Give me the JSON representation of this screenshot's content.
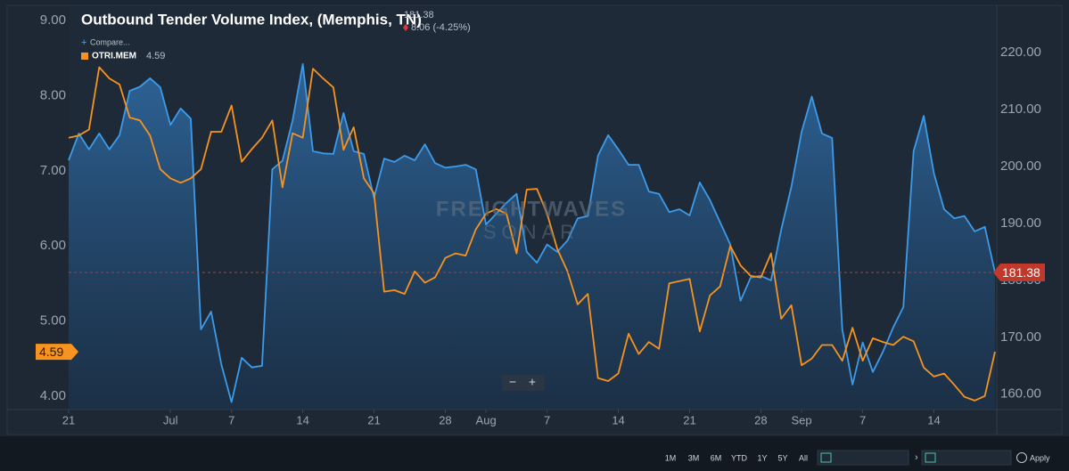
{
  "chart_data": {
    "type": "line",
    "title": "Outbound Tender Volume Index, (Memphis, TN)",
    "last_price": 181.38,
    "change": "8.06 (-4.25%)",
    "compare": "Compare...",
    "watermark": [
      "FREIGHTWAVES",
      "SONAR"
    ],
    "categories": [
      "21",
      null,
      null,
      null,
      null,
      null,
      null,
      null,
      null,
      null,
      "Jul",
      null,
      null,
      null,
      null,
      null,
      "7",
      null,
      null,
      null,
      null,
      null,
      null,
      "14",
      null,
      null,
      null,
      null,
      null,
      null,
      "21",
      null,
      null,
      null,
      null,
      null,
      null,
      "28",
      null,
      null,
      null,
      "Aug",
      null,
      null,
      null,
      null,
      null,
      "7",
      null,
      null,
      null,
      null,
      null,
      null,
      "14",
      null,
      null,
      null,
      null,
      null,
      null,
      "21",
      null,
      null,
      null,
      null,
      null,
      null,
      "28",
      null,
      null,
      null,
      "Sep",
      null,
      null,
      null,
      null,
      null,
      "7",
      null,
      null,
      null,
      null,
      null,
      null,
      "14",
      null,
      null,
      null,
      null,
      null,
      null
    ],
    "series": [
      {
        "name": "OTRI.MEM",
        "color": "#f7931e",
        "axis": "y",
        "values": [
          7.44,
          7.47,
          7.55,
          8.38,
          8.23,
          8.15,
          7.71,
          7.67,
          7.47,
          7.02,
          6.9,
          6.84,
          6.9,
          7.02,
          7.52,
          7.52,
          7.87,
          7.12,
          7.29,
          7.44,
          7.67,
          6.78,
          7.5,
          7.44,
          8.36,
          8.23,
          8.11,
          7.28,
          7.58,
          6.9,
          6.7,
          5.39,
          5.41,
          5.36,
          5.66,
          5.51,
          5.58,
          5.84,
          5.9,
          5.87,
          6.22,
          6.43,
          6.49,
          6.43,
          5.9,
          6.75,
          6.76,
          6.43,
          5.96,
          5.66,
          5.22,
          5.36,
          4.24,
          4.2,
          4.3,
          4.83,
          4.56,
          4.72,
          4.63,
          5.5,
          5.53,
          5.56,
          4.86,
          5.34,
          5.46,
          6.0,
          5.74,
          5.6,
          5.58,
          5.9,
          5.03,
          5.21,
          4.41,
          4.5,
          4.68,
          4.68,
          4.47,
          4.91,
          4.47,
          4.77,
          4.72,
          4.68,
          4.79,
          4.73,
          4.38,
          4.26,
          4.3,
          4.15,
          3.99,
          3.94,
          4.0,
          4.59
        ]
      },
      {
        "color": "#3d9be9",
        "axis": "y2",
        "values": [
          201.1,
          205.8,
          203,
          205.8,
          203,
          205.5,
          213.3,
          214,
          215.5,
          213.9,
          207.3,
          210.2,
          208.4,
          171.4,
          174.5,
          165.2,
          158.6,
          166.4,
          164.7,
          165,
          199.5,
          201,
          208.1,
          218,
          202.7,
          202.3,
          202.2,
          209.4,
          202.7,
          202.2,
          194.5,
          201.4,
          200.8,
          201.9,
          201.1,
          203.9,
          200.6,
          199.8,
          200,
          200.3,
          199.5,
          189.8,
          191.7,
          193.6,
          195.2,
          185,
          183.1,
          186.3,
          185,
          187,
          190.9,
          191.3,
          201.9,
          205.5,
          203,
          200.3,
          200.3,
          195.6,
          195.2,
          192,
          192.5,
          191.4,
          197.2,
          194.1,
          190.2,
          186.3,
          176.4,
          180.5,
          180.8,
          180,
          188.9,
          196.4,
          206.1,
          212.3,
          205.8,
          205,
          171.4,
          161.7,
          169.1,
          163.9,
          167.5,
          171.7,
          175.3,
          202.7,
          208.9,
          198.8,
          192.5,
          190.9,
          191.3,
          188.6,
          189.4,
          181.38
        ]
      }
    ],
    "ylim": [
      3.82,
      9.18
    ],
    "yticks": [
      {
        "value": 4,
        "label": "4.00"
      },
      {
        "value": 5,
        "label": "5.00"
      },
      {
        "value": 6,
        "label": "6.00"
      },
      {
        "value": 7,
        "label": "7.00"
      },
      {
        "value": 8,
        "label": "8.00"
      },
      {
        "value": 9,
        "label": "9.00"
      }
    ],
    "y2lim": [
      157.3,
      228.0
    ],
    "y2ticks": [
      {
        "value": 160,
        "label": "160.00"
      },
      {
        "value": 170,
        "label": "170.00"
      },
      {
        "value": 180,
        "label": "180.00"
      },
      {
        "value": 190,
        "label": "190.00"
      },
      {
        "value": 200,
        "label": "200.00"
      },
      {
        "value": 210,
        "label": "210.00"
      },
      {
        "value": 220,
        "label": "220.00"
      }
    ],
    "grid": false
  },
  "toolbar": {
    "ranges": [
      "1M",
      "3M",
      "6M",
      "YTD",
      "1Y",
      "5Y",
      "All"
    ],
    "apply": "Apply"
  }
}
